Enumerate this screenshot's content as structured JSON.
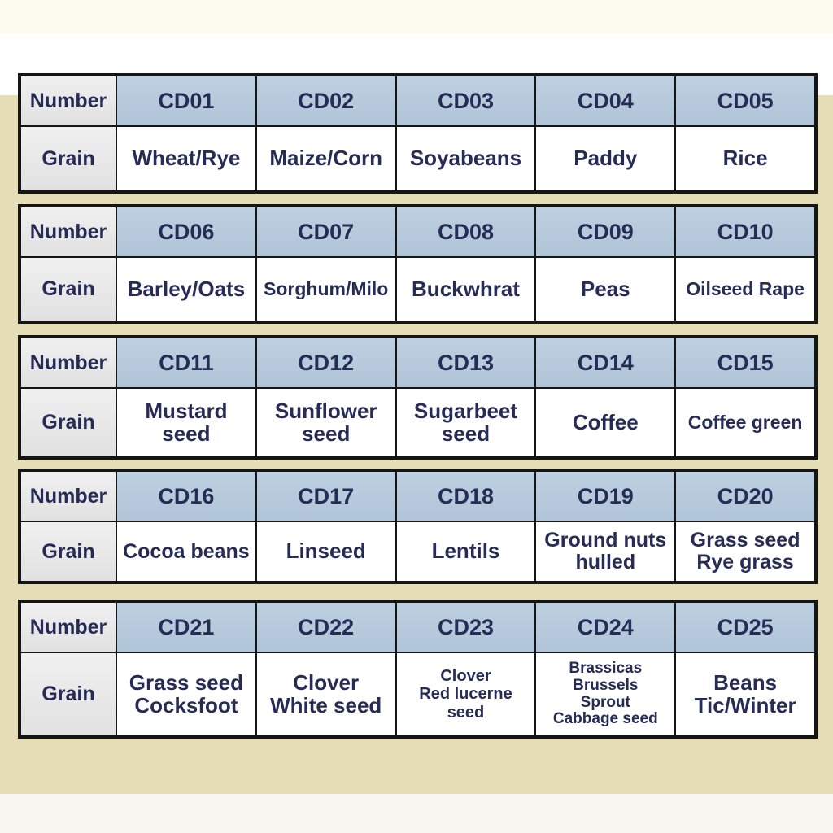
{
  "colors": {
    "band_top": "#fdfbf0",
    "panel_khaki": "#e4ddb6",
    "band_bottom": "#f8f7f1",
    "header_cell_gray": "#e8e8e8",
    "number_cell_blue": "#b7c9dc",
    "grid_border": "#151515",
    "text_navy": "#262c55"
  },
  "table": {
    "row_labels": {
      "number": "Number",
      "grain": "Grain"
    },
    "blocks": [
      {
        "numbers": [
          "CD01",
          "CD02",
          "CD03",
          "CD04",
          "CD05"
        ],
        "grains": [
          "Wheat/Rye",
          "Maize/Corn",
          "Soyabeans",
          "Paddy",
          "Rice"
        ]
      },
      {
        "numbers": [
          "CD06",
          "CD07",
          "CD08",
          "CD09",
          "CD10"
        ],
        "grains": [
          "Barley/Oats",
          "Sorghum/Milo",
          "Buckwhrat",
          "Peas",
          "Oilseed Rape"
        ]
      },
      {
        "numbers": [
          "CD11",
          "CD12",
          "CD13",
          "CD14",
          "CD15"
        ],
        "grains": [
          "Mustard\nseed",
          "Sunflower\nseed",
          "Sugarbeet\nseed",
          "Coffee",
          "Coffee green"
        ]
      },
      {
        "numbers": [
          "CD16",
          "CD17",
          "CD18",
          "CD19",
          "CD20"
        ],
        "grains": [
          "Cocoa beans",
          "Linseed",
          "Lentils",
          "Ground nuts\nhulled",
          "Grass seed\nRye grass"
        ]
      },
      {
        "numbers": [
          "CD21",
          "CD22",
          "CD23",
          "CD24",
          "CD25"
        ],
        "grains": [
          "Grass seed\nCocksfoot",
          "Clover\nWhite seed",
          "Clover\nRed lucerne\nseed",
          "Brassicas\nBrussels\nSprout\nCabbage seed",
          "Beans\nTic/Winter"
        ]
      }
    ]
  },
  "chart_data": {
    "type": "table",
    "columns": [
      "Number",
      "Grain"
    ],
    "rows": [
      [
        "CD01",
        "Wheat/Rye"
      ],
      [
        "CD02",
        "Maize/Corn"
      ],
      [
        "CD03",
        "Soyabeans"
      ],
      [
        "CD04",
        "Paddy"
      ],
      [
        "CD05",
        "Rice"
      ],
      [
        "CD06",
        "Barley/Oats"
      ],
      [
        "CD07",
        "Sorghum/Milo"
      ],
      [
        "CD08",
        "Buckwhrat"
      ],
      [
        "CD09",
        "Peas"
      ],
      [
        "CD10",
        "Oilseed Rape"
      ],
      [
        "CD11",
        "Mustard seed"
      ],
      [
        "CD12",
        "Sunflower seed"
      ],
      [
        "CD13",
        "Sugarbeet seed"
      ],
      [
        "CD14",
        "Coffee"
      ],
      [
        "CD15",
        "Coffee green"
      ],
      [
        "CD16",
        "Cocoa beans"
      ],
      [
        "CD17",
        "Linseed"
      ],
      [
        "CD18",
        "Lentils"
      ],
      [
        "CD19",
        "Ground nuts hulled"
      ],
      [
        "CD20",
        "Grass seed Rye grass"
      ],
      [
        "CD21",
        "Grass seed Cocksfoot"
      ],
      [
        "CD22",
        "Clover White seed"
      ],
      [
        "CD23",
        "Clover Red lucerne seed"
      ],
      [
        "CD24",
        "Brassicas Brussels Sprout Cabbage seed"
      ],
      [
        "CD25",
        "Beans Tic/Winter"
      ]
    ]
  }
}
